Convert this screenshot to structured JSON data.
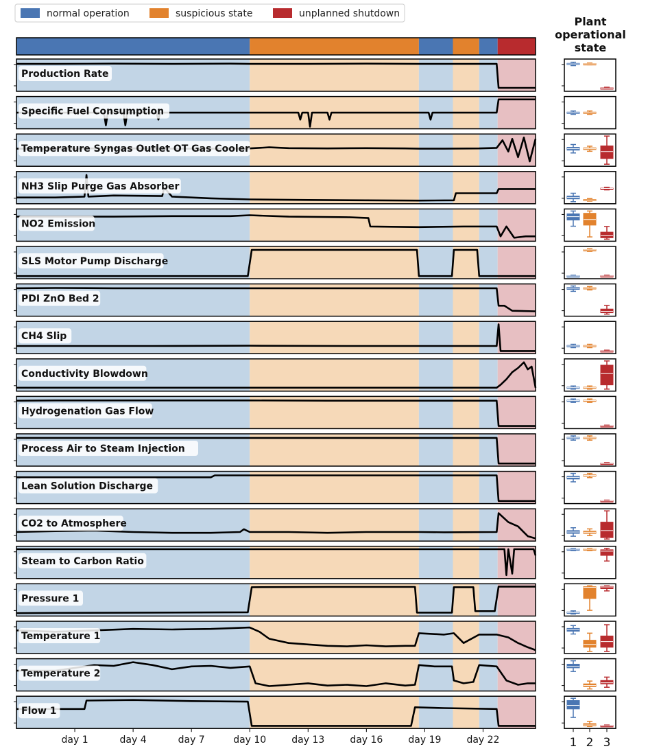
{
  "chart_data": {
    "type": "line",
    "legend": [
      {
        "label": "normal operation",
        "color": "#4a76b3"
      },
      {
        "label": "suspicious state",
        "color": "#e2822d"
      },
      {
        "label": "unplanned shutdown",
        "color": "#b82b2e"
      }
    ],
    "state_segments": [
      {
        "state": 1,
        "start": -2,
        "end": 10
      },
      {
        "state": 2,
        "start": 10,
        "end": 18.7
      },
      {
        "state": 1,
        "start": 18.7,
        "end": 20.45
      },
      {
        "state": 2,
        "start": 20.45,
        "end": 21.8
      },
      {
        "state": 1,
        "start": 21.8,
        "end": 22.75
      },
      {
        "state": 3,
        "start": 22.75,
        "end": 24.7
      }
    ],
    "x_range": [
      -2,
      24.7
    ],
    "x_ticks": [
      {
        "value": 1,
        "label": "day 1"
      },
      {
        "value": 4,
        "label": "day 4"
      },
      {
        "value": 7,
        "label": "day 7"
      },
      {
        "value": 10,
        "label": "day 10"
      },
      {
        "value": 13,
        "label": "day 13"
      },
      {
        "value": 16,
        "label": "day 16"
      },
      {
        "value": 19,
        "label": "day 19"
      },
      {
        "value": 22,
        "label": "day 22"
      }
    ],
    "side_panel": {
      "title": [
        "Plant",
        "operational",
        "state"
      ],
      "categories": [
        "1",
        "2",
        "3"
      ]
    },
    "series": [
      {
        "name": "Production Rate",
        "x": [
          -2,
          0,
          3,
          6,
          9,
          10,
          13,
          16,
          18.7,
          20,
          21.8,
          22.7,
          22.8,
          24.7
        ],
        "y": [
          0.9,
          0.9,
          0.91,
          0.9,
          0.91,
          0.9,
          0.9,
          0.91,
          0.9,
          0.9,
          0.9,
          0.9,
          0.05,
          0.05
        ],
        "box": [
          {
            "q1": 0.88,
            "med": 0.9,
            "q3": 0.92
          },
          {
            "q1": 0.89,
            "med": 0.9,
            "q3": 0.91
          },
          {
            "q1": 0.03,
            "med": 0.04,
            "q3": 0.05
          }
        ]
      },
      {
        "name": "Specific Fuel Consumption",
        "x": [
          -2,
          0,
          1.5,
          2.5,
          2.6,
          2.7,
          3.5,
          3.6,
          3.7,
          5.2,
          5.3,
          5.4,
          8,
          10,
          12.5,
          12.6,
          12.7,
          13,
          13.1,
          13.2,
          14,
          14.1,
          14.2,
          17,
          18.7,
          19.2,
          19.3,
          19.4,
          21,
          22.7,
          22.8,
          24.7
        ],
        "y": [
          0.5,
          0.5,
          0.5,
          0.5,
          0.05,
          0.5,
          0.5,
          0.05,
          0.5,
          0.5,
          0.25,
          0.5,
          0.5,
          0.5,
          0.5,
          0.25,
          0.5,
          0.5,
          0.0,
          0.5,
          0.5,
          0.25,
          0.5,
          0.5,
          0.5,
          0.5,
          0.25,
          0.5,
          0.5,
          0.5,
          0.97,
          0.97
        ],
        "box": [
          {
            "q1": 0.48,
            "med": 0.5,
            "q3": 0.52
          },
          {
            "q1": 0.48,
            "med": 0.5,
            "q3": 0.52
          },
          null
        ]
      },
      {
        "name": "Temperature Syngas Outlet OT Gas Cooler",
        "x": [
          -2,
          0,
          2,
          4,
          6,
          8,
          10,
          11,
          12,
          14,
          16,
          18,
          18.7,
          20,
          21.8,
          22.7,
          23,
          23.3,
          23.5,
          23.8,
          24.1,
          24.4,
          24.7
        ],
        "y": [
          0.55,
          0.55,
          0.56,
          0.56,
          0.55,
          0.55,
          0.56,
          0.6,
          0.57,
          0.56,
          0.57,
          0.56,
          0.55,
          0.55,
          0.56,
          0.58,
          0.85,
          0.45,
          0.9,
          0.25,
          0.95,
          0.1,
          0.9
        ],
        "box": [
          {
            "q1": 0.5,
            "med": 0.55,
            "q3": 0.6
          },
          {
            "q1": 0.52,
            "med": 0.55,
            "q3": 0.58
          },
          {
            "q1": 0.2,
            "med": 0.45,
            "q3": 0.65
          }
        ]
      },
      {
        "name": "NH3 Slip Purge Gas Absorber",
        "x": [
          -2,
          0,
          1.5,
          1.6,
          1.7,
          3,
          5.5,
          5.6,
          6,
          8,
          10,
          13,
          16,
          18.7,
          20.5,
          20.6,
          22.7,
          22.8,
          24.7
        ],
        "y": [
          0.15,
          0.15,
          0.18,
          0.95,
          0.18,
          0.22,
          0.2,
          0.5,
          0.18,
          0.12,
          0.08,
          0.06,
          0.05,
          0.04,
          0.05,
          0.3,
          0.3,
          0.45,
          0.45
        ],
        "box": [
          {
            "q1": 0.1,
            "med": 0.15,
            "q3": 0.2
          },
          {
            "q1": 0.05,
            "med": 0.06,
            "q3": 0.08
          },
          {
            "q1": 0.45,
            "med": 0.47,
            "q3": 0.48
          }
        ]
      },
      {
        "name": "NO2 Emission",
        "x": [
          -2,
          0,
          3,
          6,
          9,
          10,
          12,
          15,
          16.1,
          16.2,
          18.7,
          21,
          22.7,
          22.9,
          23.2,
          23.6,
          24.2,
          24.7
        ],
        "y": [
          0.8,
          0.8,
          0.8,
          0.82,
          0.82,
          0.85,
          0.8,
          0.78,
          0.75,
          0.45,
          0.43,
          0.45,
          0.45,
          0.1,
          0.45,
          0.05,
          0.1,
          0.1
        ],
        "box": [
          {
            "q1": 0.68,
            "med": 0.8,
            "q3": 0.9
          },
          {
            "q1": 0.5,
            "med": 0.7,
            "q3": 0.92
          },
          {
            "q1": 0.05,
            "med": 0.12,
            "q3": 0.25
          }
        ]
      },
      {
        "name": "SLS Motor Pump Discharge",
        "x": [
          -2,
          9.9,
          10.1,
          18.6,
          18.7,
          20.4,
          20.5,
          21.7,
          21.8,
          24.7
        ],
        "y": [
          0.02,
          0.02,
          0.95,
          0.95,
          0.02,
          0.02,
          0.95,
          0.95,
          0.02,
          0.02
        ],
        "box": [
          {
            "q1": 0.01,
            "med": 0.02,
            "q3": 0.03
          },
          {
            "q1": 0.93,
            "med": 0.95,
            "q3": 0.96
          },
          {
            "q1": 0.01,
            "med": 0.02,
            "q3": 0.03
          }
        ]
      },
      {
        "name": "PDI ZnO Bed 2",
        "x": [
          -2,
          0,
          3,
          6,
          10,
          14,
          18.7,
          20,
          22.7,
          22.8,
          23.1,
          23.5,
          24.7
        ],
        "y": [
          0.92,
          0.93,
          0.92,
          0.92,
          0.92,
          0.92,
          0.92,
          0.92,
          0.92,
          0.3,
          0.3,
          0.12,
          0.1
        ],
        "box": [
          {
            "q1": 0.88,
            "med": 0.92,
            "q3": 0.95
          },
          {
            "q1": 0.9,
            "med": 0.92,
            "q3": 0.94
          },
          {
            "q1": 0.05,
            "med": 0.1,
            "q3": 0.18
          }
        ]
      },
      {
        "name": "CH4 Slip",
        "x": [
          -2,
          0,
          5,
          10,
          15,
          18.7,
          22.7,
          22.8,
          22.9,
          24.7
        ],
        "y": [
          0.2,
          0.2,
          0.2,
          0.21,
          0.2,
          0.2,
          0.2,
          0.97,
          0.02,
          0.02
        ],
        "box": [
          {
            "q1": 0.18,
            "med": 0.2,
            "q3": 0.22
          },
          {
            "q1": 0.18,
            "med": 0.2,
            "q3": 0.22
          },
          {
            "q1": 0.01,
            "med": 0.02,
            "q3": 0.03
          }
        ]
      },
      {
        "name": "Conductivity Blowdown",
        "x": [
          -2,
          0,
          5,
          10,
          15,
          18.7,
          22.7,
          22.9,
          23.2,
          23.5,
          23.8,
          24.1,
          24.3,
          24.5,
          24.7
        ],
        "y": [
          0.05,
          0.05,
          0.05,
          0.05,
          0.05,
          0.05,
          0.05,
          0.15,
          0.35,
          0.6,
          0.75,
          0.95,
          0.7,
          0.8,
          0.05
        ],
        "box": [
          {
            "q1": 0.03,
            "med": 0.05,
            "q3": 0.07
          },
          {
            "q1": 0.03,
            "med": 0.05,
            "q3": 0.07
          },
          {
            "q1": 0.15,
            "med": 0.55,
            "q3": 0.85
          }
        ]
      },
      {
        "name": "Hydrogenation Gas Flow",
        "x": [
          -2,
          0,
          3,
          8,
          10,
          14,
          18.7,
          22.7,
          22.8,
          24.7
        ],
        "y": [
          0.92,
          0.93,
          0.93,
          0.93,
          0.93,
          0.92,
          0.92,
          0.92,
          0.02,
          0.02
        ],
        "box": [
          {
            "q1": 0.9,
            "med": 0.92,
            "q3": 0.94
          },
          {
            "q1": 0.9,
            "med": 0.92,
            "q3": 0.94
          },
          {
            "q1": 0.01,
            "med": 0.02,
            "q3": 0.03
          }
        ]
      },
      {
        "name": "Process Air to Steam Injection",
        "x": [
          -2,
          0,
          5,
          10,
          15,
          18.7,
          22.7,
          22.8,
          24.7
        ],
        "y": [
          0.93,
          0.93,
          0.93,
          0.93,
          0.93,
          0.93,
          0.93,
          0.02,
          0.02
        ],
        "box": [
          {
            "q1": 0.9,
            "med": 0.93,
            "q3": 0.95
          },
          {
            "q1": 0.9,
            "med": 0.93,
            "q3": 0.95
          },
          {
            "q1": 0.01,
            "med": 0.02,
            "q3": 0.03
          }
        ]
      },
      {
        "name": "Lean Solution Discharge",
        "x": [
          -2,
          0,
          5,
          8,
          8.2,
          10,
          15,
          18.7,
          22.7,
          22.8,
          24.7
        ],
        "y": [
          0.86,
          0.86,
          0.86,
          0.86,
          0.93,
          0.93,
          0.93,
          0.93,
          0.93,
          0.02,
          0.02
        ],
        "box": [
          {
            "q1": 0.8,
            "med": 0.86,
            "q3": 0.9
          },
          {
            "q1": 0.9,
            "med": 0.93,
            "q3": 0.95
          },
          {
            "q1": 0.01,
            "med": 0.02,
            "q3": 0.03
          }
        ]
      },
      {
        "name": "CO2 to Atmosphere",
        "x": [
          -2,
          0,
          2,
          4,
          6,
          8,
          9.5,
          9.7,
          10,
          12,
          14,
          16,
          18.7,
          20,
          22.7,
          22.8,
          23.3,
          23.8,
          24.3,
          24.7
        ],
        "y": [
          0.25,
          0.28,
          0.3,
          0.25,
          0.22,
          0.22,
          0.25,
          0.35,
          0.25,
          0.25,
          0.22,
          0.25,
          0.25,
          0.24,
          0.25,
          0.92,
          0.6,
          0.45,
          0.1,
          0.02
        ],
        "box": [
          {
            "q1": 0.2,
            "med": 0.25,
            "q3": 0.3
          },
          {
            "q1": 0.2,
            "med": 0.24,
            "q3": 0.28
          },
          {
            "q1": 0.05,
            "med": 0.3,
            "q3": 0.6
          }
        ]
      },
      {
        "name": "Steam to Carbon Ratio",
        "x": [
          -2,
          0,
          5,
          10,
          15,
          18.7,
          22.7,
          23.1,
          23.2,
          23.3,
          23.5,
          23.6,
          23.7,
          24.6,
          24.7
        ],
        "y": [
          0.97,
          0.97,
          0.97,
          0.97,
          0.97,
          0.97,
          0.97,
          0.97,
          0.05,
          0.97,
          0.1,
          0.97,
          0.97,
          0.97,
          0.75
        ],
        "box": [
          {
            "q1": 0.95,
            "med": 0.97,
            "q3": 0.98
          },
          {
            "q1": 0.95,
            "med": 0.97,
            "q3": 0.98
          },
          {
            "q1": 0.75,
            "med": 0.9,
            "q3": 0.95
          }
        ]
      },
      {
        "name": "Pressure 1",
        "x": [
          -2,
          0,
          5,
          9.9,
          10.1,
          14,
          18.5,
          18.6,
          20.4,
          20.5,
          21.5,
          21.6,
          22.6,
          22.8,
          24.7
        ],
        "y": [
          0.03,
          0.04,
          0.05,
          0.06,
          0.95,
          0.96,
          0.96,
          0.05,
          0.05,
          0.95,
          0.95,
          0.1,
          0.1,
          0.97,
          0.97
        ],
        "box": [
          {
            "q1": 0.03,
            "med": 0.05,
            "q3": 0.07
          },
          {
            "q1": 0.55,
            "med": 0.95,
            "q3": 0.97
          },
          {
            "q1": 0.9,
            "med": 0.96,
            "q3": 0.98
          }
        ]
      },
      {
        "name": "Temperature 1",
        "x": [
          -2,
          0,
          2,
          4,
          6,
          8,
          10,
          10.5,
          11,
          12,
          13,
          14,
          15,
          16,
          17,
          18,
          18.5,
          18.7,
          20,
          20.5,
          21,
          21.8,
          22.7,
          23.3,
          23.8,
          24.3,
          24.7
        ],
        "y": [
          0.75,
          0.7,
          0.75,
          0.8,
          0.78,
          0.8,
          0.85,
          0.7,
          0.45,
          0.3,
          0.25,
          0.2,
          0.18,
          0.22,
          0.18,
          0.2,
          0.2,
          0.65,
          0.6,
          0.65,
          0.3,
          0.6,
          0.6,
          0.5,
          0.3,
          0.15,
          0.05
        ],
        "box": [
          {
            "q1": 0.72,
            "med": 0.78,
            "q3": 0.82
          },
          {
            "q1": 0.15,
            "med": 0.25,
            "q3": 0.4
          },
          {
            "q1": 0.15,
            "med": 0.35,
            "q3": 0.55
          }
        ]
      },
      {
        "name": "Temperature 2",
        "x": [
          -2,
          0,
          2,
          3,
          4,
          5,
          6,
          7,
          8,
          9,
          10,
          10.3,
          11,
          12,
          13,
          14,
          15,
          16,
          17,
          18,
          18.5,
          18.7,
          19.5,
          20.4,
          20.5,
          21,
          21.5,
          21.8,
          22.7,
          23.2,
          23.8,
          24.3,
          24.7
        ],
        "y": [
          0.65,
          0.65,
          0.85,
          0.82,
          0.95,
          0.85,
          0.7,
          0.8,
          0.82,
          0.75,
          0.8,
          0.2,
          0.1,
          0.15,
          0.2,
          0.12,
          0.15,
          0.1,
          0.2,
          0.12,
          0.15,
          0.85,
          0.8,
          0.8,
          0.3,
          0.2,
          0.25,
          0.85,
          0.8,
          0.3,
          0.15,
          0.2,
          0.2
        ],
        "box": [
          {
            "q1": 0.75,
            "med": 0.8,
            "q3": 0.88
          },
          {
            "q1": 0.08,
            "med": 0.12,
            "q3": 0.18
          },
          {
            "q1": 0.18,
            "med": 0.22,
            "q3": 0.3
          }
        ]
      },
      {
        "name": "Flow 1",
        "x": [
          -2,
          1.5,
          1.6,
          4,
          7,
          9.9,
          10.1,
          14,
          18.3,
          18.5,
          20,
          22.7,
          22.8,
          24.7
        ],
        "y": [
          0.62,
          0.62,
          0.92,
          0.94,
          0.9,
          0.88,
          0.02,
          0.02,
          0.02,
          0.68,
          0.65,
          0.62,
          0.02,
          0.02
        ],
        "box": [
          {
            "q1": 0.62,
            "med": 0.75,
            "q3": 0.92
          },
          {
            "q1": 0.02,
            "med": 0.05,
            "q3": 0.1
          },
          {
            "q1": 0.01,
            "med": 0.02,
            "q3": 0.03
          }
        ]
      }
    ]
  }
}
